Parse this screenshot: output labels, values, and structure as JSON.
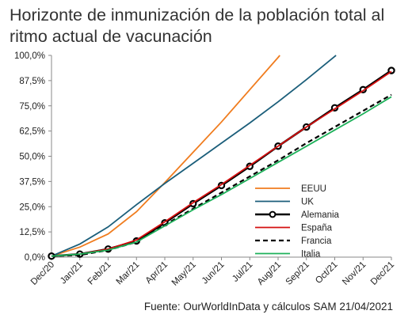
{
  "title": "Horizonte de inmunización de la población total al ritmo actual de vacunación",
  "source": "Fuente: OurWorldInData y cálculos SAM 21/04/2021",
  "chart_data": {
    "type": "line",
    "title": "Horizonte de inmunización de la población total al ritmo actual de vacunación",
    "xlabel": "",
    "ylabel": "",
    "x": [
      "Dec/20",
      "Jan/21",
      "Feb/21",
      "Mar/21",
      "Apr/21",
      "May/21",
      "Jun/21",
      "Jul/21",
      "Aug/21",
      "Sep/21",
      "Oct/21",
      "Nov/21",
      "Dec/21"
    ],
    "ylim": [
      0,
      100
    ],
    "yticks": [
      "0,0%",
      "12,5%",
      "25,0%",
      "37,5%",
      "50,0%",
      "62,5%",
      "75,0%",
      "87,5%",
      "100,0%"
    ],
    "grid": false,
    "legend_position": "bottom-right",
    "series": [
      {
        "name": "EEUU",
        "color": "#f07c1e",
        "style": "solid",
        "values": [
          0.5,
          5,
          11.5,
          22.5,
          37,
          52,
          67,
          83,
          99,
          null,
          null,
          null,
          null
        ]
      },
      {
        "name": "UK",
        "color": "#1b5e7a",
        "style": "solid",
        "values": [
          0.5,
          6.5,
          15,
          26,
          36.5,
          46.5,
          56.5,
          66.5,
          77,
          88,
          99.5,
          null,
          null
        ]
      },
      {
        "name": "Alemania",
        "color": "#000000",
        "style": "markers",
        "values": [
          0.5,
          1.5,
          4,
          8,
          17,
          26.5,
          35.5,
          45,
          55,
          64.5,
          74,
          83,
          92.5
        ]
      },
      {
        "name": "España",
        "color": "#d40f0f",
        "style": "solid",
        "values": [
          0.5,
          1.5,
          4,
          8.5,
          17.5,
          27,
          36,
          45.5,
          55,
          64.5,
          73.5,
          82.5,
          92
        ]
      },
      {
        "name": "Francia",
        "color": "#000000",
        "style": "dashed",
        "values": [
          0.5,
          1,
          3.5,
          7.5,
          16,
          24,
          32,
          40,
          48,
          56.5,
          64.5,
          72.5,
          80.5
        ]
      },
      {
        "name": "Italia",
        "color": "#1db15a",
        "style": "solid",
        "values": [
          0.5,
          1.5,
          3.5,
          7.5,
          15.5,
          23.5,
          31,
          39,
          47,
          55,
          63,
          71,
          79.5
        ]
      }
    ]
  }
}
